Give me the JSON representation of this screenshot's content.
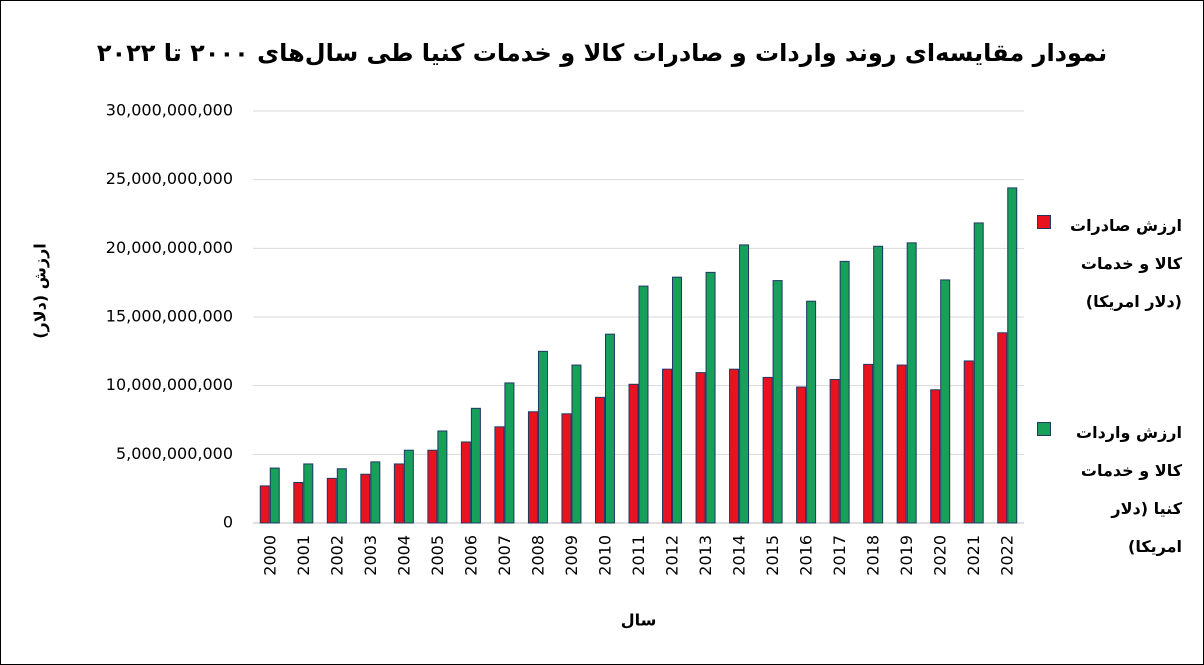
{
  "chart_data": {
    "type": "bar",
    "title": "نمودار مقایسه‌ای روند واردات و صادرات کالا و خدمات کنیا طی سال‌های ۲۰۰۰ تا ۲۰۲۲",
    "x_label": "سال",
    "y_label": "ارزش (دلار)",
    "categories": [
      "2000",
      "2001",
      "2002",
      "2003",
      "2004",
      "2005",
      "2006",
      "2007",
      "2008",
      "2009",
      "2010",
      "2011",
      "2012",
      "2013",
      "2014",
      "2015",
      "2016",
      "2017",
      "2018",
      "2019",
      "2020",
      "2021",
      "2022"
    ],
    "series": [
      {
        "name": "ارزش صادرات کالا و خدمات (دلار امریکا)",
        "color": "#e8131f",
        "values": [
          2700000000,
          2950000000,
          3250000000,
          3550000000,
          4300000000,
          5300000000,
          5900000000,
          7000000000,
          8100000000,
          7950000000,
          9150000000,
          10100000000,
          11200000000,
          10950000000,
          11200000000,
          10600000000,
          9900000000,
          10450000000,
          11550000000,
          11500000000,
          9700000000,
          11800000000,
          13850000000
        ]
      },
      {
        "name": "ارزش واردات کالا و خدمات کنیا (دلار امریکا)",
        "color": "#16a05a",
        "values": [
          4000000000,
          4300000000,
          3950000000,
          4450000000,
          5300000000,
          6700000000,
          8350000000,
          10200000000,
          12500000000,
          11500000000,
          13750000000,
          17250000000,
          17900000000,
          18250000000,
          20250000000,
          17650000000,
          16150000000,
          19050000000,
          20150000000,
          20400000000,
          17700000000,
          21850000000,
          24400000000
        ]
      }
    ],
    "ylim": [
      0,
      30000000000
    ],
    "yticks": [
      0,
      {
        "value": 5000000000,
        "label": "5,000,000,000"
      },
      {
        "value": 10000000000,
        "label": "10,000,000,000"
      },
      {
        "value": 15000000000,
        "label": "15,000,000,000"
      },
      {
        "value": 20000000000,
        "label": "20,000,000,000"
      },
      {
        "value": 25000000000,
        "label": "25,000,000,000"
      },
      {
        "value": 30000000000,
        "label": "30,000,000,000"
      }
    ],
    "grid": true
  }
}
